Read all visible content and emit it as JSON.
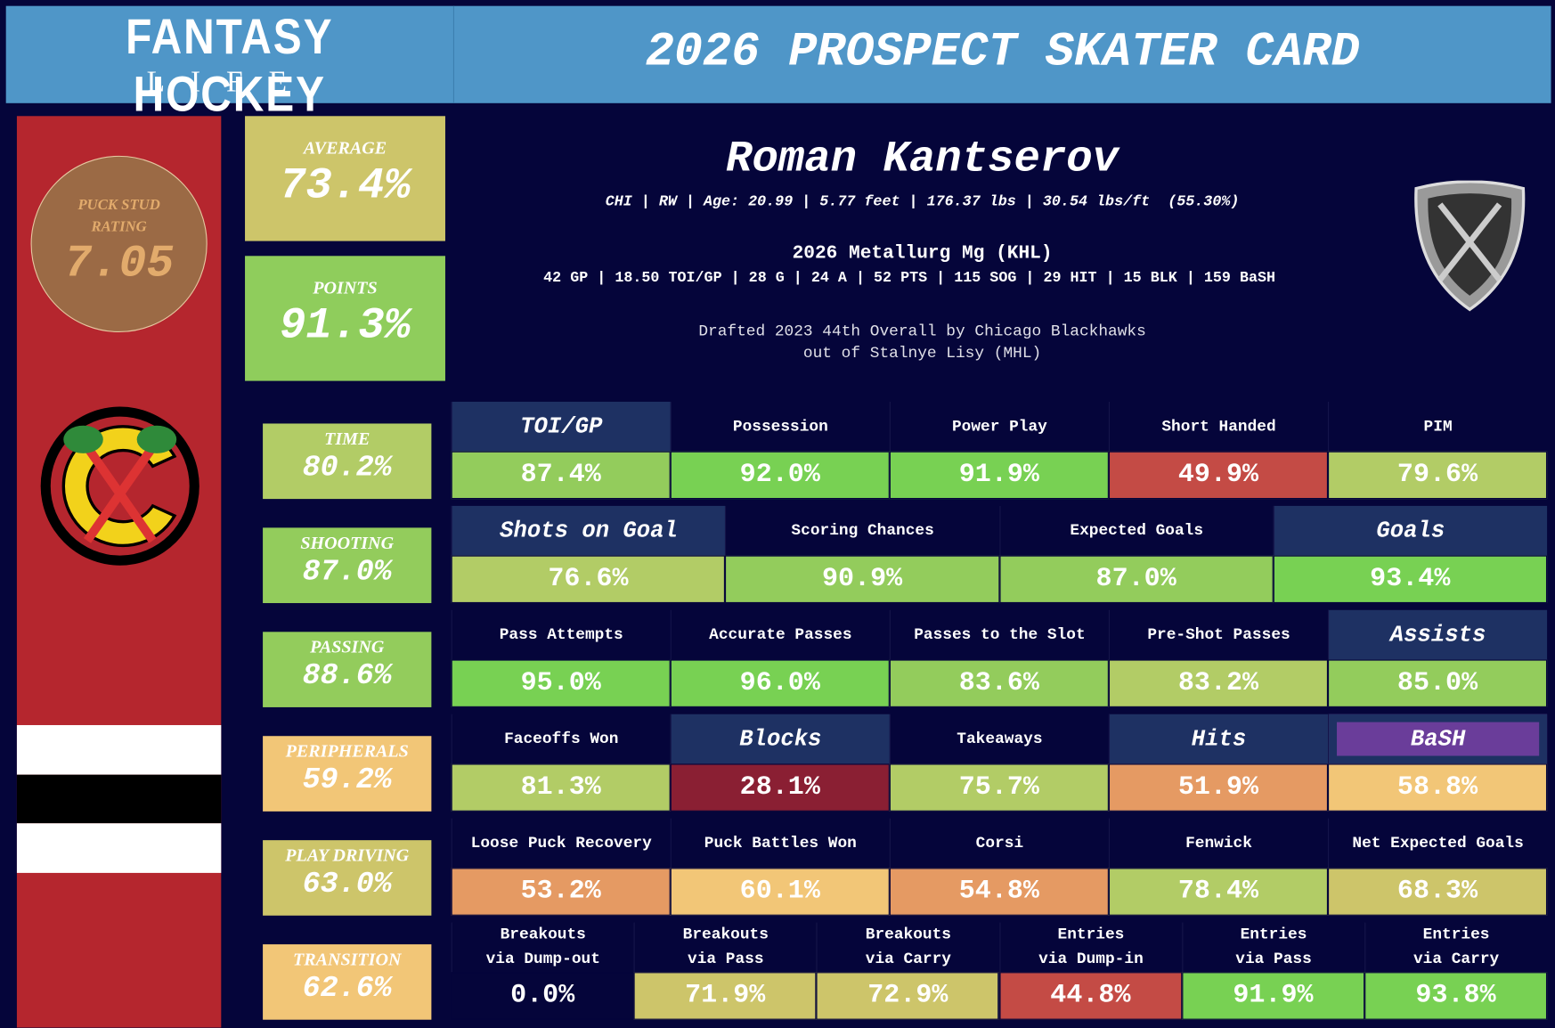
{
  "header": {
    "logo_line1": "FANTASY HOCKEY",
    "logo_line2": "LIFE",
    "title": "2026 PROSPECT SKATER CARD"
  },
  "rating": {
    "label": "PUCK STUD RATING",
    "value": "7.05"
  },
  "summary": [
    {
      "label": "AVERAGE",
      "value": "73.4%",
      "color": "#cdc56a"
    },
    {
      "label": "POINTS",
      "value": "91.3%",
      "color": "#8fcd5c"
    }
  ],
  "player": {
    "name": "Roman Kantserov",
    "bio": "CHI | RW | Age: 20.99 | 5.77 feet | 176.37 lbs | 30.54 lbs/ft  (55.30%)",
    "season": "2026 Metallurg Mg (KHL)",
    "stats": "42 GP | 18.50 TOI/GP | 28 G | 24 A | 52 PTS | 115 SOG | 29 HIT | 15 BLK | 159 BaSH",
    "draft_line1": "Drafted 2023 44th Overall by Chicago Blackhawks",
    "draft_line2": "out of Stalnye Lisy (MHL)"
  },
  "categories": [
    {
      "label": "TIME",
      "value": "80.2%",
      "color": "#b2cc66",
      "metrics": [
        {
          "name": "TOI/GP",
          "value": "87.4%",
          "color": "#93cc5c",
          "highlight": "#1e3163"
        },
        {
          "name": "Possession",
          "value": "92.0%",
          "color": "#78d153"
        },
        {
          "name": "Power Play",
          "value": "91.9%",
          "color": "#78d153"
        },
        {
          "name": "Short Handed",
          "value": "49.9%",
          "color": "#c44b45"
        },
        {
          "name": "PIM",
          "value": "79.6%",
          "color": "#b2cc66"
        }
      ]
    },
    {
      "label": "SHOOTING",
      "value": "87.0%",
      "color": "#93cc5c",
      "metrics": [
        {
          "name": "Shots on Goal",
          "value": "76.6%",
          "color": "#b2cc66",
          "highlight": "#1e3163"
        },
        {
          "name": "Scoring Chances",
          "value": "90.9%",
          "color": "#93cc5c"
        },
        {
          "name": "Expected Goals",
          "value": "87.0%",
          "color": "#93cc5c"
        },
        {
          "name": "Goals",
          "value": "93.4%",
          "color": "#78d153",
          "highlight": "#1e3163"
        }
      ]
    },
    {
      "label": "PASSING",
      "value": "88.6%",
      "color": "#93cc5c",
      "metrics": [
        {
          "name": "Pass Attempts",
          "value": "95.0%",
          "color": "#78d153"
        },
        {
          "name": "Accurate Passes",
          "value": "96.0%",
          "color": "#78d153"
        },
        {
          "name": "Passes to the Slot",
          "value": "83.6%",
          "color": "#93cc5c"
        },
        {
          "name": "Pre-Shot Passes",
          "value": "83.2%",
          "color": "#b2cc66"
        },
        {
          "name": "Assists",
          "value": "85.0%",
          "color": "#93cc5c",
          "highlight": "#1e3163"
        }
      ]
    },
    {
      "label": "PERIPHERALS",
      "value": "59.2%",
      "color": "#f2c677",
      "metrics": [
        {
          "name": "Faceoffs Won",
          "value": "81.3%",
          "color": "#b2cc66"
        },
        {
          "name": "Blocks",
          "value": "28.1%",
          "color": "#8a1f33",
          "highlight": "#1e3163"
        },
        {
          "name": "Takeaways",
          "value": "75.7%",
          "color": "#b2cc66"
        },
        {
          "name": "Hits",
          "value": "51.9%",
          "color": "#e59a63",
          "highlight": "#1e3163"
        },
        {
          "name": "BaSH",
          "value": "58.8%",
          "color": "#f2c677",
          "highlight": "#6a3d9a"
        }
      ]
    },
    {
      "label": "PLAY DRIVING",
      "value": "63.0%",
      "color": "#cdc56a",
      "metrics": [
        {
          "name": "Loose Puck Recovery",
          "value": "53.2%",
          "color": "#e59a63"
        },
        {
          "name": "Puck Battles Won",
          "value": "60.1%",
          "color": "#f2c677"
        },
        {
          "name": "Corsi",
          "value": "54.8%",
          "color": "#e59a63"
        },
        {
          "name": "Fenwick",
          "value": "78.4%",
          "color": "#b2cc66"
        },
        {
          "name": "Net Expected Goals",
          "value": "68.3%",
          "color": "#cdc56a"
        }
      ]
    },
    {
      "label": "TRANSITION",
      "value": "62.6%",
      "color": "#f2c677",
      "metrics": [
        {
          "name": "Breakouts\nvia Dump-out",
          "value": "0.0%"
        },
        {
          "name": "Breakouts\nvia Pass",
          "value": "71.9%",
          "color": "#cdc56a"
        },
        {
          "name": "Breakouts\nvia Carry",
          "value": "72.9%",
          "color": "#cdc56a"
        },
        {
          "name": "Entries\nvia Dump-in",
          "value": "44.8%",
          "color": "#c44b45"
        },
        {
          "name": "Entries\nvia Pass",
          "value": "91.9%",
          "color": "#78d153"
        },
        {
          "name": "Entries\nvia Carry",
          "value": "93.8%",
          "color": "#78d153"
        }
      ]
    }
  ]
}
